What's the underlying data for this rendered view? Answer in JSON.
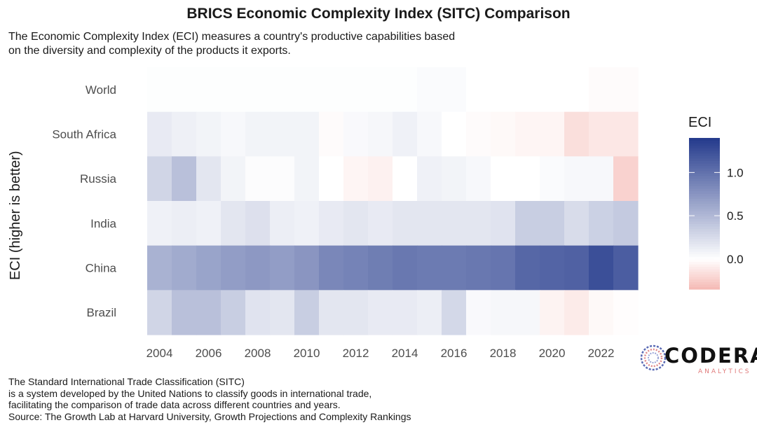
{
  "title": "BRICS Economic Complexity Index (SITC) Comparison",
  "subtitle_lines": [
    "The Economic Complexity Index (ECI) measures a country's productive capabilities based",
    "on the diversity and complexity of the products it exports."
  ],
  "caption_lines": [
    "The Standard International Trade Classification (SITC)",
    "is a system developed by the United Nations to classify goods in international trade,",
    "facilitating the comparison of trade data across different countries and years.",
    "Source: The Growth Lab at Harvard University, Growth Projections and Complexity Rankings"
  ],
  "logo": {
    "name": "CODERA",
    "sub": "ANALYTICS"
  },
  "colors": {
    "low": "#f5b8b3",
    "mid": "#ffffff",
    "high": "#243a8c"
  },
  "chart_data": {
    "type": "heatmap",
    "title": "BRICS Economic Complexity Index (SITC) Comparison",
    "ylabel": "ECI (higher is better)",
    "legend_title": "ECI",
    "legend_ticks": [
      1.0,
      0.5,
      0.0
    ],
    "legend_tick_labels": [
      "1.0",
      "0.5",
      "0.0"
    ],
    "legend_range": [
      -0.35,
      1.4
    ],
    "x_ticks": [
      2004,
      2006,
      2008,
      2010,
      2012,
      2014,
      2016,
      2018,
      2020,
      2022
    ],
    "years": [
      2004,
      2005,
      2006,
      2007,
      2008,
      2009,
      2010,
      2011,
      2012,
      2013,
      2014,
      2015,
      2016,
      2017,
      2018,
      2019,
      2020,
      2021,
      2022,
      2023
    ],
    "rows": [
      {
        "name": "World",
        "values": [
          0.01,
          0.01,
          0.01,
          0.01,
          0.01,
          0.01,
          0.01,
          0.01,
          0.01,
          0.01,
          0.01,
          0.03,
          0.03,
          0.0,
          0.0,
          0.0,
          0.0,
          0.0,
          -0.02,
          -0.02
        ]
      },
      {
        "name": "South Africa",
        "values": [
          0.15,
          0.11,
          0.08,
          0.05,
          0.08,
          0.08,
          0.08,
          -0.02,
          0.04,
          0.06,
          0.1,
          0.05,
          0.0,
          -0.02,
          -0.03,
          -0.05,
          -0.05,
          -0.16,
          -0.12,
          -0.12
        ]
      },
      {
        "name": "Russia",
        "values": [
          0.3,
          0.45,
          0.18,
          0.08,
          0.02,
          0.02,
          0.08,
          0.0,
          -0.05,
          -0.07,
          0.0,
          0.1,
          0.08,
          0.05,
          0.0,
          0.0,
          0.03,
          0.05,
          0.05,
          -0.22
        ]
      },
      {
        "name": "India",
        "values": [
          0.1,
          0.12,
          0.1,
          0.18,
          0.22,
          0.12,
          0.1,
          0.15,
          0.18,
          0.15,
          0.18,
          0.18,
          0.18,
          0.18,
          0.2,
          0.35,
          0.35,
          0.25,
          0.33,
          0.38
        ]
      },
      {
        "name": "China",
        "values": [
          0.55,
          0.6,
          0.65,
          0.7,
          0.73,
          0.7,
          0.75,
          0.85,
          0.88,
          0.92,
          0.96,
          0.94,
          0.94,
          0.96,
          0.98,
          1.08,
          1.1,
          1.12,
          1.25,
          1.15
        ]
      },
      {
        "name": "Brazil",
        "values": [
          0.3,
          0.45,
          0.45,
          0.35,
          0.2,
          0.18,
          0.35,
          0.18,
          0.18,
          0.15,
          0.15,
          0.12,
          0.28,
          0.04,
          0.06,
          0.06,
          -0.06,
          -0.1,
          -0.03,
          -0.01
        ]
      }
    ]
  }
}
